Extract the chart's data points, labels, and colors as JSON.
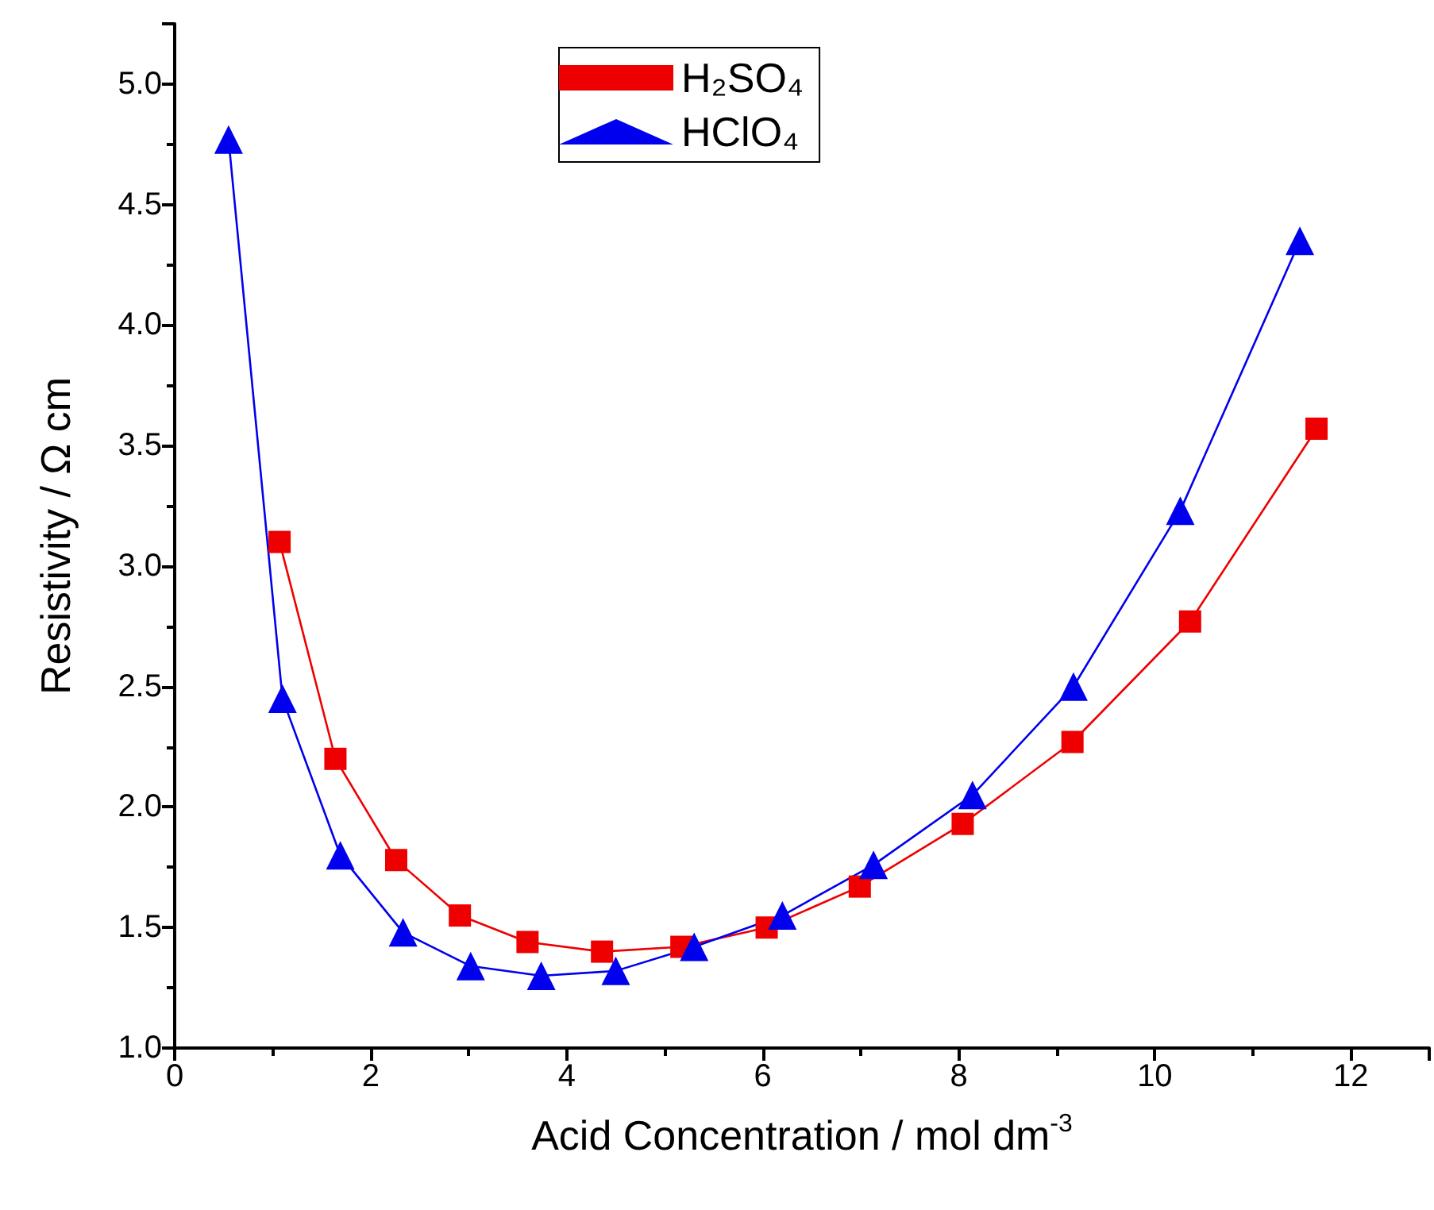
{
  "chart_data": {
    "type": "line",
    "xlabel": "Acid Concentration / mol dm$^{-3}$",
    "ylabel": "Resistivity / Ω cm",
    "xlim": [
      0,
      12.8
    ],
    "xticks": [
      0,
      2,
      4,
      6,
      8,
      10,
      12
    ],
    "ylim": [
      1,
      5.25
    ],
    "yticks": [
      {
        "value": 1,
        "label": "1.0"
      },
      {
        "value": 1.5,
        "label": "1.5"
      },
      {
        "value": 2,
        "label": "2.0"
      },
      {
        "value": 2.5,
        "label": "2.5"
      },
      {
        "value": 3,
        "label": "3.0"
      },
      {
        "value": 3.5,
        "label": "3.5"
      },
      {
        "value": 4,
        "label": "4.0"
      },
      {
        "value": 4.5,
        "label": "4.5"
      },
      {
        "value": 5,
        "label": "5.0"
      }
    ],
    "grid": false,
    "legend": "top",
    "line_style": "solid",
    "series": [
      {
        "name": "H₂SO₄",
        "color": "#ee0000",
        "marker": "square",
        "x": [
          1.07,
          1.64,
          2.26,
          2.91,
          3.6,
          4.36,
          5.17,
          6.04,
          6.99,
          8.04,
          9.16,
          10.36,
          11.65
        ],
        "values": [
          3.1,
          2.2,
          1.78,
          1.55,
          1.44,
          1.4,
          1.42,
          1.5,
          1.67,
          1.93,
          2.27,
          2.77,
          3.57
        ]
      },
      {
        "name": "HClO₄",
        "color": "#0000ee",
        "marker": "triangle",
        "x": [
          0.55,
          1.1,
          1.69,
          2.33,
          3.02,
          3.74,
          4.5,
          5.3,
          6.2,
          7.13,
          8.14,
          9.17,
          10.26,
          11.48
        ],
        "values": [
          4.77,
          2.45,
          1.8,
          1.48,
          1.34,
          1.3,
          1.32,
          1.42,
          1.55,
          1.76,
          2.05,
          2.5,
          3.23,
          4.35
        ]
      }
    ]
  }
}
